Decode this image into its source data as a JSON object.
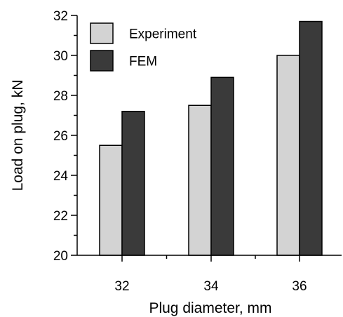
{
  "chart_data": {
    "type": "bar",
    "title": "",
    "xlabel": "Plug diameter, mm",
    "ylabel": "Load on plug, kN",
    "categories": [
      "32",
      "34",
      "36"
    ],
    "series": [
      {
        "name": "Experiment",
        "values": [
          25.5,
          27.5,
          30.0
        ],
        "color": "#d3d3d3"
      },
      {
        "name": "FEM",
        "values": [
          27.2,
          28.9,
          31.7
        ],
        "color": "#3a3a3a"
      }
    ],
    "ylim": [
      20,
      32
    ],
    "yticks": [
      "20",
      "22",
      "24",
      "26",
      "28",
      "30",
      "32"
    ],
    "grid": false,
    "legend_position": "top-left"
  }
}
